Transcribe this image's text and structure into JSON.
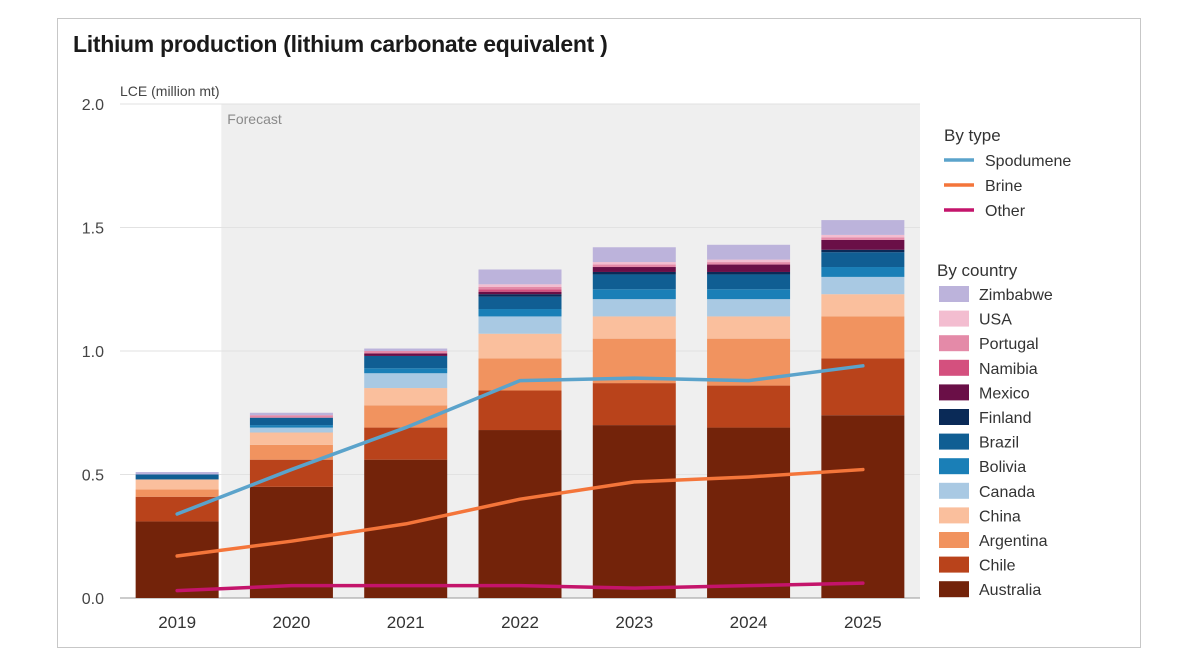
{
  "title": "Lithium production (lithium carbonate equivalent )",
  "chart_data": {
    "type": "bar",
    "stacked": true,
    "title": "Lithium production (lithium carbonate equivalent )",
    "ylabel": "LCE (million mt)",
    "xlabel": "",
    "ylim": [
      0,
      2.0
    ],
    "yticks": [
      "0.0",
      "0.5",
      "1.0",
      "1.5",
      "2.0"
    ],
    "grid": true,
    "forecast_label": "Forecast",
    "forecast_start": "2020",
    "categories": [
      "2019",
      "2020",
      "2021",
      "2022",
      "2023",
      "2024",
      "2025"
    ],
    "series": [
      {
        "name": "Australia",
        "color": "#73230a",
        "values": [
          0.31,
          0.45,
          0.56,
          0.68,
          0.7,
          0.69,
          0.74
        ]
      },
      {
        "name": "Chile",
        "color": "#b9431b",
        "values": [
          0.1,
          0.11,
          0.13,
          0.16,
          0.17,
          0.17,
          0.23
        ]
      },
      {
        "name": "Argentina",
        "color": "#f1935f",
        "values": [
          0.03,
          0.06,
          0.09,
          0.13,
          0.18,
          0.19,
          0.17
        ]
      },
      {
        "name": "China",
        "color": "#fabf9d",
        "values": [
          0.04,
          0.05,
          0.07,
          0.1,
          0.09,
          0.09,
          0.09
        ]
      },
      {
        "name": "Canada",
        "color": "#a9c9e3",
        "values": [
          0.0,
          0.02,
          0.06,
          0.07,
          0.07,
          0.07,
          0.07
        ]
      },
      {
        "name": "Bolivia",
        "color": "#1a7fb7",
        "values": [
          0.0,
          0.01,
          0.02,
          0.03,
          0.04,
          0.04,
          0.04
        ]
      },
      {
        "name": "Brazil",
        "color": "#105e93",
        "values": [
          0.02,
          0.03,
          0.05,
          0.05,
          0.06,
          0.06,
          0.06
        ]
      },
      {
        "name": "Finland",
        "color": "#0a2a57",
        "values": [
          0.0,
          0.0,
          0.0,
          0.01,
          0.01,
          0.01,
          0.01
        ]
      },
      {
        "name": "Mexico",
        "color": "#6a0f47",
        "values": [
          0.0,
          0.0,
          0.01,
          0.01,
          0.02,
          0.03,
          0.04
        ]
      },
      {
        "name": "Namibia",
        "color": "#d4507e",
        "values": [
          0.0,
          0.0,
          0.0,
          0.01,
          0.0,
          0.0,
          0.0
        ]
      },
      {
        "name": "Portugal",
        "color": "#e48aa8",
        "values": [
          0.0,
          0.01,
          0.01,
          0.01,
          0.01,
          0.01,
          0.01
        ]
      },
      {
        "name": "USA",
        "color": "#f3bdd0",
        "values": [
          0.0,
          0.0,
          0.0,
          0.01,
          0.01,
          0.01,
          0.01
        ]
      },
      {
        "name": "Zimbabwe",
        "color": "#bcb3db",
        "values": [
          0.01,
          0.01,
          0.01,
          0.06,
          0.06,
          0.06,
          0.06
        ]
      }
    ],
    "lines": [
      {
        "name": "Spodumene",
        "color": "#5ba3cb",
        "values": [
          0.34,
          0.52,
          0.69,
          0.88,
          0.89,
          0.88,
          0.94
        ]
      },
      {
        "name": "Brine",
        "color": "#f4753a",
        "values": [
          0.17,
          0.23,
          0.3,
          0.4,
          0.47,
          0.49,
          0.52
        ]
      },
      {
        "name": "Other",
        "color": "#c4146b",
        "values": [
          0.03,
          0.05,
          0.05,
          0.05,
          0.04,
          0.05,
          0.06
        ]
      }
    ],
    "legend": {
      "position": "right",
      "type_heading": "By type",
      "country_heading": "By country",
      "country_order": [
        "Zimbabwe",
        "USA",
        "Portugal",
        "Namibia",
        "Mexico",
        "Finland",
        "Brazil",
        "Bolivia",
        "Canada",
        "China",
        "Argentina",
        "Chile",
        "Australia"
      ]
    }
  }
}
